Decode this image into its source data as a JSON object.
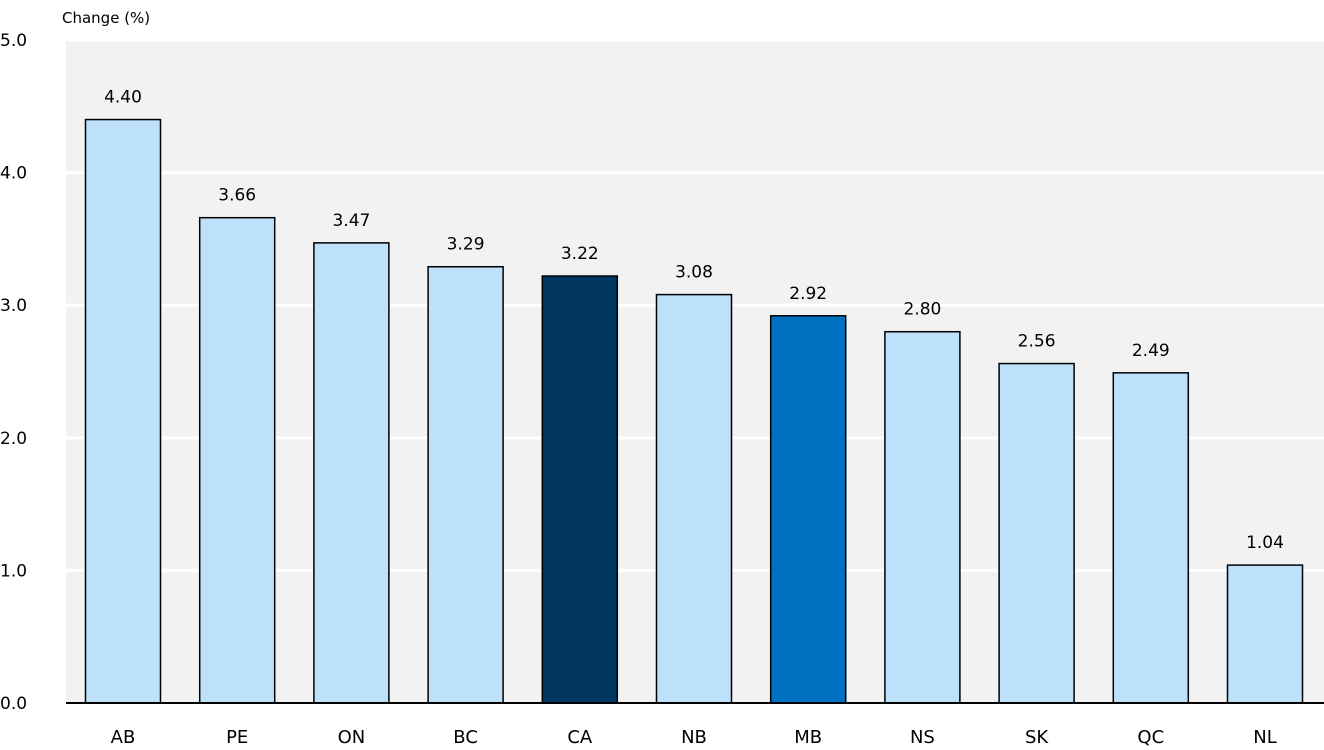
{
  "chart_data": {
    "type": "bar",
    "title": "",
    "xlabel": "",
    "ylabel": "Change (%)",
    "ylim": [
      0,
      5
    ],
    "yticks": [
      "0.0",
      "1.0",
      "2.0",
      "3.0",
      "4.0",
      "5.0"
    ],
    "grid": true,
    "legend": "none",
    "categories": [
      "AB",
      "PE",
      "ON",
      "BC",
      "CA",
      "NB",
      "MB",
      "NS",
      "SK",
      "QC",
      "NL"
    ],
    "values": [
      4.4,
      3.66,
      3.47,
      3.29,
      3.22,
      3.08,
      2.92,
      2.8,
      2.56,
      2.49,
      1.04
    ],
    "data_labels": [
      "4.40",
      "3.66",
      "3.47",
      "3.29",
      "3.22",
      "3.08",
      "2.92",
      "2.80",
      "2.56",
      "2.49",
      "1.04"
    ],
    "bar_colors": [
      "#bde0fb",
      "#bde0fb",
      "#bde0fb",
      "#bde0fb",
      "#003660",
      "#bde0fb",
      "#0070c0",
      "#bde0fb",
      "#bde0fb",
      "#bde0fb",
      "#bde0fb"
    ],
    "plot_background": "#f2f2f2",
    "gridline_color": "#ffffff",
    "bar_outline_color": "#000000"
  }
}
